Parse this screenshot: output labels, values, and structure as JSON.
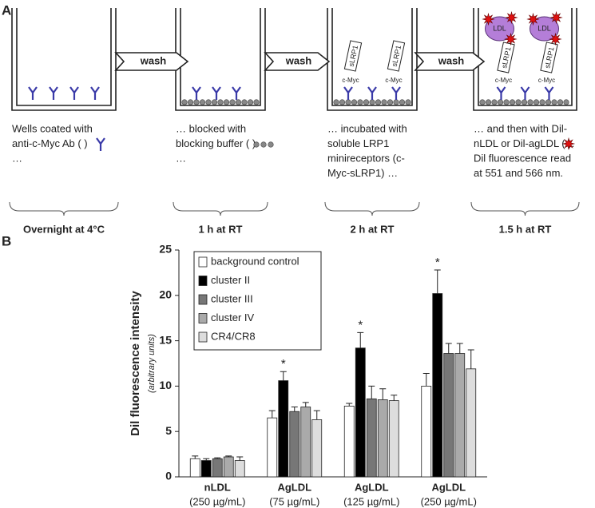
{
  "panel_a": {
    "label": "A",
    "wash": "wash",
    "well_labels": {
      "receptor": "sLRP1",
      "tag": "c-Myc",
      "ldl": "LDL"
    },
    "steps": [
      {
        "caption": [
          "Wells coated with",
          "anti-c-Myc Ab (   )",
          "…"
        ],
        "time": "Overnight at 4°C"
      },
      {
        "caption": [
          "… blocked with",
          "blocking buffer (      )",
          "…"
        ],
        "time": "1 h at RT"
      },
      {
        "caption": [
          "… incubated with",
          "soluble LRP1",
          "minireceptors (c-",
          "Myc-sLRP1) …"
        ],
        "time": "2 h at RT"
      },
      {
        "caption": [
          "… and then with Dil-",
          "nLDL or Dil-agLDL (    ).",
          "Dil fluorescence read",
          "at 551 and 566 nm."
        ],
        "time": "1.5 h at RT"
      }
    ]
  },
  "chart_data": {
    "type": "bar",
    "panel_label": "B",
    "y_label": "Dil fluorescence intensity",
    "y_sublabel": "(arbitrary units)",
    "categories": [
      "nLDL",
      "AgLDL",
      "AgLDL",
      "AgLDL"
    ],
    "category_notes": [
      "(250 µg/mL)",
      "(75 µg/mL)",
      "(125 µg/mL)",
      "(250 µg/mL)"
    ],
    "ylim": [
      0,
      25
    ],
    "yticks": [
      0,
      5,
      10,
      15,
      20,
      25
    ],
    "grid": false,
    "legend": "top-left",
    "series": [
      {
        "name": "background control",
        "color": "#ffffff",
        "values": [
          2.0,
          6.5,
          7.8,
          10.0
        ],
        "errors": [
          0.3,
          0.8,
          0.3,
          1.4
        ]
      },
      {
        "name": "cluster II",
        "color": "#000000",
        "values": [
          1.8,
          10.6,
          14.2,
          20.2
        ],
        "errors": [
          0.2,
          1.0,
          1.7,
          2.6
        ],
        "markers": [
          null,
          "*",
          "*",
          "*"
        ]
      },
      {
        "name": "cluster III",
        "color": "#777777",
        "values": [
          2.0,
          7.2,
          8.6,
          13.6
        ],
        "errors": [
          0.1,
          0.5,
          1.4,
          1.1
        ]
      },
      {
        "name": "cluster IV",
        "color": "#aaaaaa",
        "values": [
          2.2,
          7.7,
          8.5,
          13.6
        ],
        "errors": [
          0.1,
          0.5,
          1.2,
          1.1
        ]
      },
      {
        "name": "CR4/CR8",
        "color": "#dddddd",
        "values": [
          1.8,
          6.3,
          8.4,
          11.9
        ],
        "errors": [
          0.4,
          1.0,
          0.6,
          2.1
        ]
      }
    ]
  }
}
